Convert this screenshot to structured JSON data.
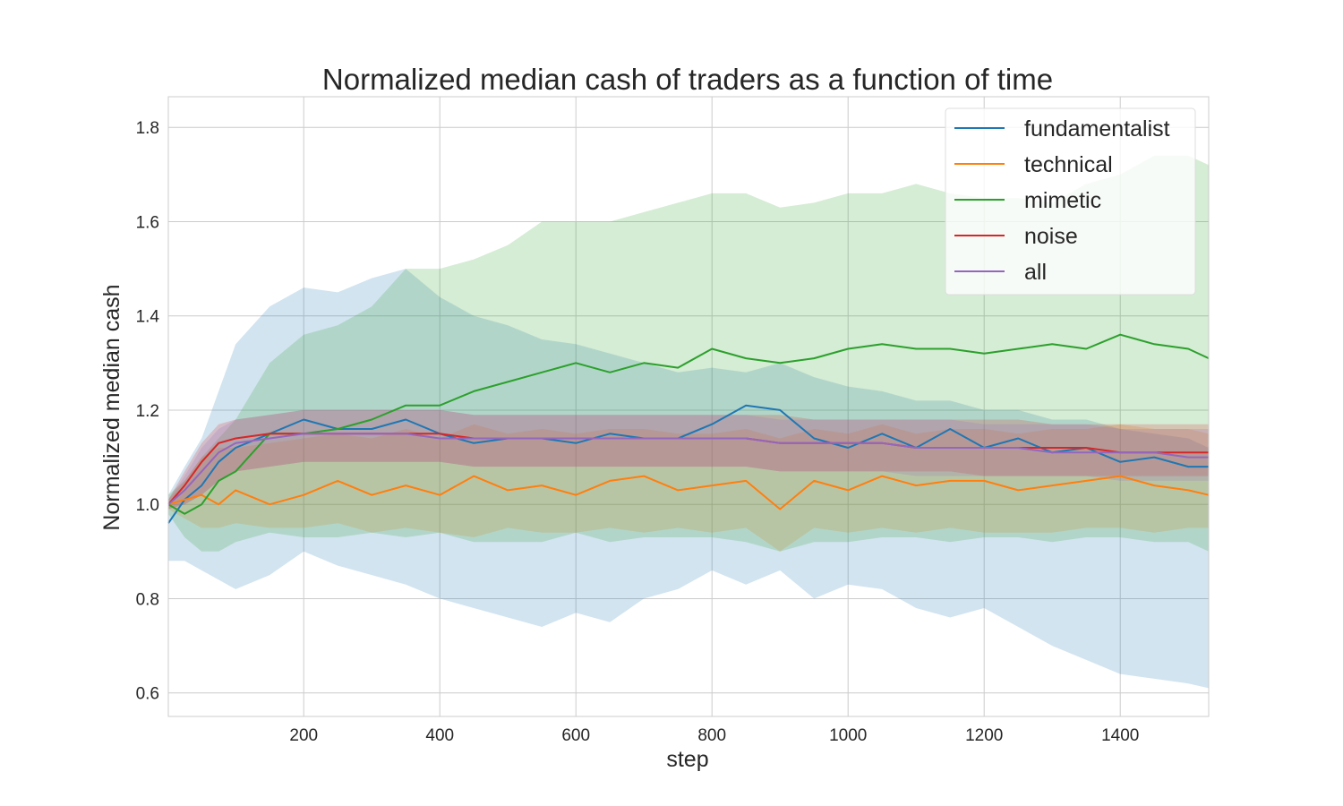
{
  "chart_data": {
    "type": "line",
    "title": "Normalized median cash of traders as a function of time",
    "xlabel": "step",
    "ylabel": "Normalized median cash",
    "xlim": [
      1,
      1530
    ],
    "ylim": [
      0.55,
      1.865
    ],
    "xticks": [
      200,
      400,
      600,
      800,
      1000,
      1200,
      1400
    ],
    "yticks": [
      0.6,
      0.8,
      1.0,
      1.2,
      1.4,
      1.6,
      1.8
    ],
    "xtick_labels": [
      "200",
      "400",
      "600",
      "800",
      "1000",
      "1200",
      "1400"
    ],
    "ytick_labels": [
      "0.6",
      "0.8",
      "1.0",
      "1.2",
      "1.4",
      "1.6",
      "1.8"
    ],
    "grid": true,
    "legend_position": "top-right",
    "x": [
      1,
      25,
      50,
      75,
      100,
      150,
      200,
      250,
      300,
      350,
      400,
      450,
      500,
      550,
      600,
      650,
      700,
      750,
      800,
      850,
      900,
      950,
      1000,
      1050,
      1100,
      1150,
      1200,
      1250,
      1300,
      1350,
      1400,
      1450,
      1500,
      1530
    ],
    "series": [
      {
        "name": "fundamentalist",
        "color": "#1f77b4",
        "values": [
          0.96,
          1.01,
          1.04,
          1.09,
          1.12,
          1.15,
          1.18,
          1.16,
          1.16,
          1.18,
          1.15,
          1.13,
          1.14,
          1.14,
          1.13,
          1.15,
          1.14,
          1.14,
          1.17,
          1.21,
          1.2,
          1.14,
          1.12,
          1.15,
          1.12,
          1.16,
          1.12,
          1.14,
          1.11,
          1.12,
          1.09,
          1.1,
          1.08,
          1.08
        ],
        "lower": [
          0.88,
          0.88,
          0.86,
          0.84,
          0.82,
          0.85,
          0.9,
          0.87,
          0.85,
          0.83,
          0.8,
          0.78,
          0.76,
          0.74,
          0.77,
          0.75,
          0.8,
          0.82,
          0.86,
          0.83,
          0.86,
          0.8,
          0.83,
          0.82,
          0.78,
          0.76,
          0.78,
          0.74,
          0.7,
          0.67,
          0.64,
          0.63,
          0.62,
          0.61
        ],
        "upper": [
          1.02,
          1.08,
          1.14,
          1.24,
          1.34,
          1.42,
          1.46,
          1.45,
          1.48,
          1.5,
          1.44,
          1.4,
          1.38,
          1.35,
          1.34,
          1.32,
          1.3,
          1.28,
          1.29,
          1.28,
          1.3,
          1.27,
          1.25,
          1.24,
          1.22,
          1.22,
          1.2,
          1.2,
          1.18,
          1.18,
          1.16,
          1.15,
          1.14,
          1.12
        ]
      },
      {
        "name": "technical",
        "color": "#ff7f0e",
        "values": [
          1.0,
          1.01,
          1.02,
          1.0,
          1.03,
          1.0,
          1.02,
          1.05,
          1.02,
          1.04,
          1.02,
          1.06,
          1.03,
          1.04,
          1.02,
          1.05,
          1.06,
          1.03,
          1.04,
          1.05,
          0.99,
          1.05,
          1.03,
          1.06,
          1.04,
          1.05,
          1.05,
          1.03,
          1.04,
          1.05,
          1.06,
          1.04,
          1.03,
          1.02
        ],
        "lower": [
          0.99,
          0.97,
          0.95,
          0.95,
          0.96,
          0.95,
          0.95,
          0.96,
          0.94,
          0.95,
          0.94,
          0.93,
          0.95,
          0.94,
          0.94,
          0.95,
          0.94,
          0.95,
          0.94,
          0.95,
          0.9,
          0.95,
          0.94,
          0.95,
          0.94,
          0.95,
          0.94,
          0.94,
          0.94,
          0.95,
          0.95,
          0.94,
          0.95,
          0.95
        ],
        "upper": [
          1.01,
          1.05,
          1.1,
          1.12,
          1.12,
          1.13,
          1.14,
          1.15,
          1.14,
          1.16,
          1.14,
          1.17,
          1.15,
          1.16,
          1.15,
          1.16,
          1.16,
          1.15,
          1.15,
          1.16,
          1.14,
          1.16,
          1.15,
          1.17,
          1.15,
          1.16,
          1.16,
          1.15,
          1.16,
          1.16,
          1.17,
          1.16,
          1.16,
          1.15
        ]
      },
      {
        "name": "mimetic",
        "color": "#2ca02c",
        "values": [
          1.0,
          0.98,
          1.0,
          1.05,
          1.07,
          1.15,
          1.15,
          1.16,
          1.18,
          1.21,
          1.21,
          1.24,
          1.26,
          1.28,
          1.3,
          1.28,
          1.3,
          1.29,
          1.33,
          1.31,
          1.3,
          1.31,
          1.33,
          1.34,
          1.33,
          1.33,
          1.32,
          1.33,
          1.34,
          1.33,
          1.36,
          1.34,
          1.33,
          1.31
        ],
        "lower": [
          0.98,
          0.93,
          0.9,
          0.9,
          0.92,
          0.94,
          0.93,
          0.93,
          0.94,
          0.93,
          0.94,
          0.92,
          0.92,
          0.92,
          0.94,
          0.92,
          0.93,
          0.93,
          0.93,
          0.92,
          0.9,
          0.92,
          0.92,
          0.93,
          0.93,
          0.92,
          0.93,
          0.93,
          0.92,
          0.93,
          0.93,
          0.92,
          0.92,
          0.9
        ],
        "upper": [
          1.02,
          1.05,
          1.1,
          1.14,
          1.18,
          1.3,
          1.36,
          1.38,
          1.42,
          1.5,
          1.5,
          1.52,
          1.55,
          1.6,
          1.6,
          1.6,
          1.62,
          1.64,
          1.66,
          1.66,
          1.63,
          1.64,
          1.66,
          1.66,
          1.68,
          1.66,
          1.65,
          1.65,
          1.64,
          1.68,
          1.7,
          1.74,
          1.74,
          1.72
        ]
      },
      {
        "name": "noise",
        "color": "#d62728",
        "values": [
          1.0,
          1.04,
          1.09,
          1.13,
          1.14,
          1.15,
          1.15,
          1.15,
          1.15,
          1.15,
          1.15,
          1.14,
          1.14,
          1.14,
          1.14,
          1.14,
          1.14,
          1.14,
          1.14,
          1.14,
          1.13,
          1.13,
          1.13,
          1.13,
          1.12,
          1.12,
          1.12,
          1.12,
          1.12,
          1.12,
          1.11,
          1.11,
          1.11,
          1.11
        ],
        "lower": [
          0.99,
          1.0,
          1.02,
          1.05,
          1.07,
          1.08,
          1.09,
          1.09,
          1.09,
          1.09,
          1.09,
          1.08,
          1.08,
          1.08,
          1.08,
          1.08,
          1.08,
          1.08,
          1.08,
          1.08,
          1.07,
          1.07,
          1.07,
          1.07,
          1.07,
          1.07,
          1.06,
          1.06,
          1.06,
          1.06,
          1.06,
          1.06,
          1.06,
          1.06
        ],
        "upper": [
          1.01,
          1.07,
          1.13,
          1.17,
          1.18,
          1.19,
          1.2,
          1.2,
          1.2,
          1.2,
          1.2,
          1.19,
          1.19,
          1.19,
          1.19,
          1.19,
          1.19,
          1.19,
          1.19,
          1.19,
          1.19,
          1.18,
          1.18,
          1.18,
          1.18,
          1.18,
          1.18,
          1.18,
          1.17,
          1.17,
          1.17,
          1.17,
          1.17,
          1.17
        ]
      },
      {
        "name": "all",
        "color": "#9467bd",
        "values": [
          1.0,
          1.03,
          1.07,
          1.11,
          1.13,
          1.14,
          1.15,
          1.15,
          1.15,
          1.15,
          1.14,
          1.14,
          1.14,
          1.14,
          1.14,
          1.14,
          1.14,
          1.14,
          1.14,
          1.14,
          1.13,
          1.13,
          1.13,
          1.13,
          1.12,
          1.12,
          1.12,
          1.12,
          1.11,
          1.11,
          1.11,
          1.11,
          1.1,
          1.1
        ],
        "lower": [
          0.99,
          1.0,
          1.02,
          1.05,
          1.07,
          1.08,
          1.09,
          1.09,
          1.09,
          1.09,
          1.09,
          1.08,
          1.08,
          1.08,
          1.08,
          1.08,
          1.08,
          1.08,
          1.08,
          1.08,
          1.07,
          1.07,
          1.07,
          1.07,
          1.06,
          1.06,
          1.06,
          1.06,
          1.06,
          1.06,
          1.05,
          1.05,
          1.05,
          1.05
        ],
        "upper": [
          1.01,
          1.06,
          1.12,
          1.16,
          1.18,
          1.19,
          1.2,
          1.2,
          1.2,
          1.2,
          1.2,
          1.19,
          1.19,
          1.19,
          1.19,
          1.19,
          1.19,
          1.19,
          1.19,
          1.19,
          1.18,
          1.18,
          1.18,
          1.18,
          1.18,
          1.18,
          1.17,
          1.17,
          1.17,
          1.17,
          1.16,
          1.16,
          1.16,
          1.16
        ]
      }
    ]
  }
}
